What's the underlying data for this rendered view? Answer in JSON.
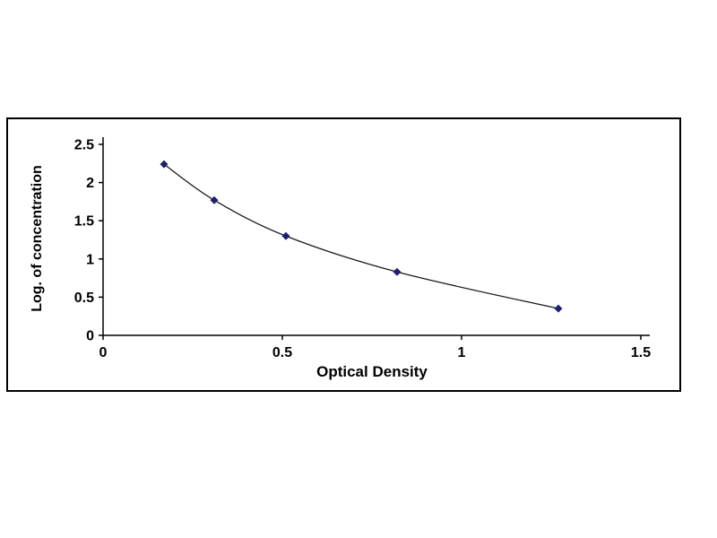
{
  "chart_data": {
    "type": "line",
    "xlabel": "Optical Density",
    "ylabel": "Log. of concentration",
    "x": [
      0.17,
      0.31,
      0.51,
      0.82,
      1.27
    ],
    "y": [
      2.24,
      1.77,
      1.3,
      0.83,
      0.35
    ],
    "xlim": [
      0,
      1.5
    ],
    "ylim": [
      0,
      2.5
    ],
    "xticks": [
      0,
      0.5,
      1,
      1.5
    ],
    "xtick_labels": [
      "0",
      "0.5",
      "1",
      "1.5"
    ],
    "yticks": [
      0,
      0.5,
      1,
      1.5,
      2,
      2.5
    ],
    "ytick_labels": [
      "0",
      "0.5",
      "1",
      "1.5",
      "2",
      "2.5"
    ],
    "grid": false,
    "legend": "none",
    "marker": "diamond",
    "marker_color": "#1f1f6e",
    "line_color": "#1a1a1a",
    "axis_color": "#000000",
    "frame_border_color": "#000000",
    "background": "#ffffff"
  }
}
